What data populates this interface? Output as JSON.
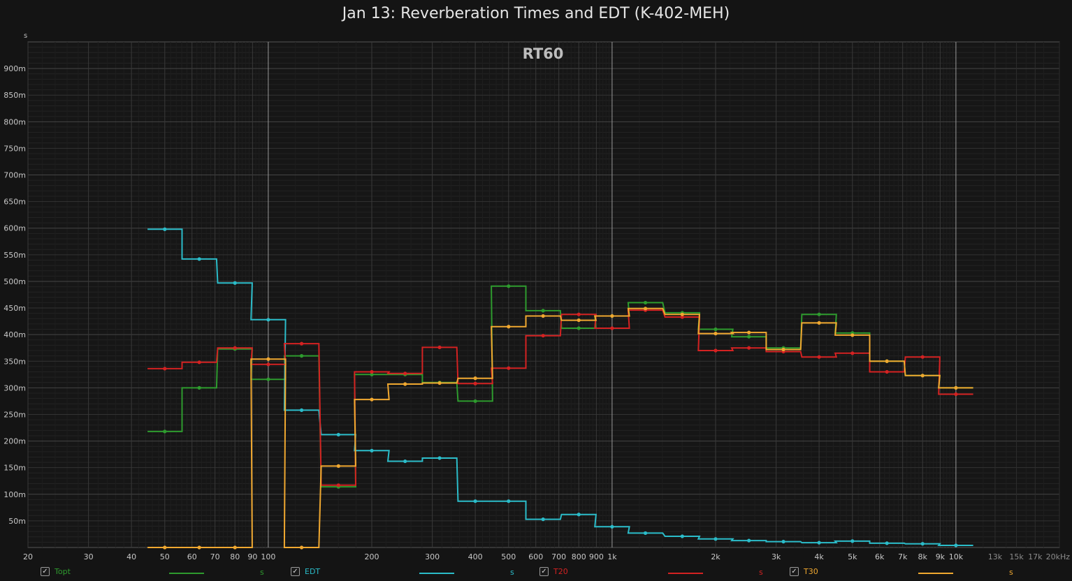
{
  "chart_data": {
    "type": "line",
    "title": "Jan 13: Reverberation Times and EDT (K-402-MEH)",
    "subtitle": "RT60",
    "ylabel": "s",
    "xlabel": "",
    "x_scale": "log",
    "xlim": [
      20,
      20000
    ],
    "ylim": [
      0,
      0.95
    ],
    "grid": true,
    "step": true,
    "x_tick_labels": [
      {
        "v": 20,
        "t": "20"
      },
      {
        "v": 30,
        "t": "30"
      },
      {
        "v": 40,
        "t": "40"
      },
      {
        "v": 50,
        "t": "50"
      },
      {
        "v": 60,
        "t": "60"
      },
      {
        "v": 70,
        "t": "70"
      },
      {
        "v": 80,
        "t": "80"
      },
      {
        "v": 90,
        "t": "90"
      },
      {
        "v": 100,
        "t": "100"
      },
      {
        "v": 200,
        "t": "200"
      },
      {
        "v": 300,
        "t": "300"
      },
      {
        "v": 400,
        "t": "400"
      },
      {
        "v": 500,
        "t": "500"
      },
      {
        "v": 600,
        "t": "600"
      },
      {
        "v": 700,
        "t": "700"
      },
      {
        "v": 800,
        "t": "800"
      },
      {
        "v": 900,
        "t": "900"
      },
      {
        "v": 1000,
        "t": "1k"
      },
      {
        "v": 2000,
        "t": "2k"
      },
      {
        "v": 3000,
        "t": "3k"
      },
      {
        "v": 4000,
        "t": "4k"
      },
      {
        "v": 5000,
        "t": "5k"
      },
      {
        "v": 6000,
        "t": "6k"
      },
      {
        "v": 7000,
        "t": "7k"
      },
      {
        "v": 8000,
        "t": "8k"
      },
      {
        "v": 9000,
        "t": "9k"
      },
      {
        "v": 10000,
        "t": "10k"
      },
      {
        "v": 13000,
        "t": "13k"
      },
      {
        "v": 15000,
        "t": "15k"
      },
      {
        "v": 17000,
        "t": "17k"
      },
      {
        "v": 20000,
        "t": "20kHz"
      }
    ],
    "y_tick_labels": [
      {
        "v": 0.05,
        "t": "50m"
      },
      {
        "v": 0.1,
        "t": "100m"
      },
      {
        "v": 0.15,
        "t": "150m"
      },
      {
        "v": 0.2,
        "t": "200m"
      },
      {
        "v": 0.25,
        "t": "250m"
      },
      {
        "v": 0.3,
        "t": "300m"
      },
      {
        "v": 0.35,
        "t": "350m"
      },
      {
        "v": 0.4,
        "t": "400m"
      },
      {
        "v": 0.45,
        "t": "450m"
      },
      {
        "v": 0.5,
        "t": "500m"
      },
      {
        "v": 0.55,
        "t": "550m"
      },
      {
        "v": 0.6,
        "t": "600m"
      },
      {
        "v": 0.65,
        "t": "650m"
      },
      {
        "v": 0.7,
        "t": "700m"
      },
      {
        "v": 0.75,
        "t": "750m"
      },
      {
        "v": 0.8,
        "t": "800m"
      },
      {
        "v": 0.85,
        "t": "850m"
      },
      {
        "v": 0.9,
        "t": "900m"
      }
    ],
    "x": [
      50,
      63,
      80,
      100,
      125,
      160,
      200,
      250,
      315,
      400,
      500,
      630,
      800,
      1000,
      1250,
      1600,
      2000,
      2500,
      3150,
      4000,
      5000,
      6300,
      8000,
      10000
    ],
    "series": [
      {
        "name": "Topt",
        "color": "#2e9b2e",
        "values": [
          0.218,
          0.3,
          0.373,
          0.316,
          0.36,
          0.114,
          0.325,
          0.325,
          0.31,
          0.275,
          0.491,
          0.445,
          0.412,
          0.435,
          0.46,
          0.441,
          0.41,
          0.396,
          0.375,
          0.438,
          0.403,
          0.35,
          0.323,
          0.3
        ]
      },
      {
        "name": "EDT",
        "color": "#2bbcc9",
        "values": [
          0.598,
          0.542,
          0.497,
          0.428,
          0.258,
          0.212,
          0.182,
          0.162,
          0.168,
          0.087,
          0.087,
          0.053,
          0.062,
          0.039,
          0.027,
          0.021,
          0.016,
          0.013,
          0.011,
          0.009,
          0.012,
          0.008,
          0.007,
          0.004
        ]
      },
      {
        "name": "T20",
        "color": "#d42222",
        "values": [
          0.336,
          0.348,
          0.375,
          0.344,
          0.383,
          0.117,
          0.33,
          0.327,
          0.376,
          0.308,
          0.337,
          0.398,
          0.438,
          0.412,
          0.446,
          0.433,
          0.37,
          0.375,
          0.368,
          0.358,
          0.365,
          0.33,
          0.358,
          0.288
        ]
      },
      {
        "name": "T30",
        "color": "#f0a830",
        "values": [
          0.0,
          0.0,
          0.0,
          0.354,
          0.0,
          0.153,
          0.278,
          0.307,
          0.309,
          0.318,
          0.415,
          0.435,
          0.427,
          0.435,
          0.449,
          0.438,
          0.402,
          0.404,
          0.372,
          0.422,
          0.399,
          0.35,
          0.323,
          0.3
        ]
      }
    ],
    "legend": [
      {
        "name": "Topt",
        "unit": "s",
        "checked": true,
        "color": "#2e9b2e"
      },
      {
        "name": "EDT",
        "unit": "s",
        "checked": true,
        "color": "#2bbcc9"
      },
      {
        "name": "T20",
        "unit": "s",
        "checked": true,
        "color": "#d42222"
      },
      {
        "name": "T30",
        "unit": "s",
        "checked": true,
        "color": "#f0a830"
      }
    ],
    "legend_placement": "bottom",
    "check_glyph": "✓"
  }
}
